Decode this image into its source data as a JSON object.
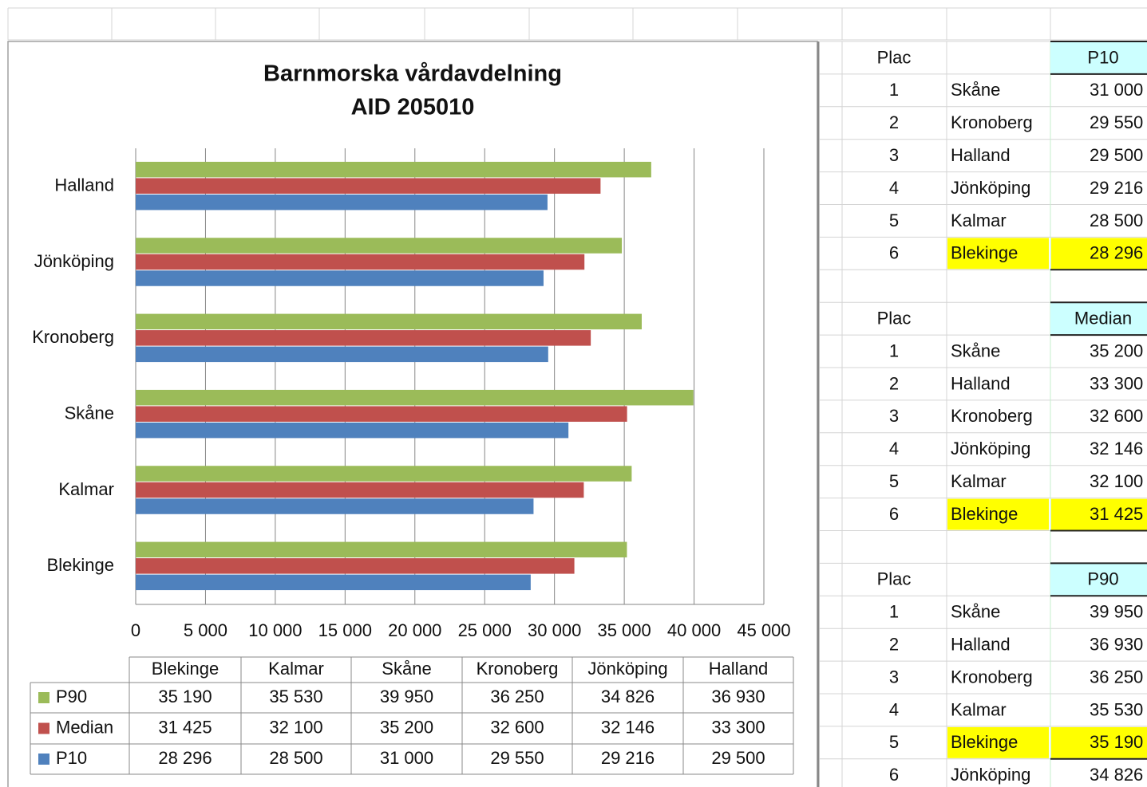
{
  "chart_data": {
    "type": "bar",
    "orientation": "horizontal",
    "title": "Barnmorska vårdavdelning",
    "subtitle": "AID 205010",
    "categories": [
      "Blekinge",
      "Kalmar",
      "Skåne",
      "Kronoberg",
      "Jönköping",
      "Halland"
    ],
    "series": [
      {
        "name": "P90",
        "color": "#9bbb59",
        "values": [
          35190,
          35530,
          39950,
          36250,
          34826,
          36930
        ],
        "value_labels": [
          "35 190",
          "35 530",
          "39 950",
          "36 250",
          "34 826",
          "36 930"
        ]
      },
      {
        "name": "Median",
        "color": "#c0504d",
        "values": [
          31425,
          32100,
          35200,
          32600,
          32146,
          33300
        ],
        "value_labels": [
          "31 425",
          "32 100",
          "35 200",
          "32 600",
          "32 146",
          "33 300"
        ]
      },
      {
        "name": "P10",
        "color": "#4f81bd",
        "values": [
          28296,
          28500,
          31000,
          29550,
          29216,
          29500
        ],
        "value_labels": [
          "28 296",
          "28 500",
          "31 000",
          "29 550",
          "29 216",
          "29 500"
        ]
      }
    ],
    "xlim": [
      0,
      45000
    ],
    "xticks": [
      0,
      {
        "value": 5000,
        "label": "5 000"
      },
      {
        "value": 10000,
        "label": "10 000"
      },
      {
        "value": 15000,
        "label": "15 000"
      },
      {
        "value": 20000,
        "label": "20 000"
      },
      {
        "value": 25000,
        "label": "25 000"
      },
      {
        "value": 30000,
        "label": "30 000"
      },
      {
        "value": 35000,
        "label": "35 000"
      },
      {
        "value": 40000,
        "label": "40 000"
      },
      {
        "value": 45000,
        "label": "45 000"
      }
    ],
    "grid": true,
    "data_table": true
  },
  "rankings": [
    {
      "header": "Plac",
      "measure": "P10",
      "highlighted": 5,
      "rows": [
        {
          "rank": "1",
          "name": "Skåne",
          "value": "31 000"
        },
        {
          "rank": "2",
          "name": "Kronoberg",
          "value": "29 550"
        },
        {
          "rank": "3",
          "name": "Halland",
          "value": "29 500"
        },
        {
          "rank": "4",
          "name": "Jönköping",
          "value": "29 216"
        },
        {
          "rank": "5",
          "name": "Kalmar",
          "value": "28 500"
        },
        {
          "rank": "6",
          "name": "Blekinge",
          "value": "28 296"
        }
      ]
    },
    {
      "header": "Plac",
      "measure": "Median",
      "highlighted": 5,
      "rows": [
        {
          "rank": "1",
          "name": "Skåne",
          "value": "35 200"
        },
        {
          "rank": "2",
          "name": "Halland",
          "value": "33 300"
        },
        {
          "rank": "3",
          "name": "Kronoberg",
          "value": "32 600"
        },
        {
          "rank": "4",
          "name": "Jönköping",
          "value": "32 146"
        },
        {
          "rank": "5",
          "name": "Kalmar",
          "value": "32 100"
        },
        {
          "rank": "6",
          "name": "Blekinge",
          "value": "31 425"
        }
      ]
    },
    {
      "header": "Plac",
      "measure": "P90",
      "highlighted": 4,
      "rows": [
        {
          "rank": "1",
          "name": "Skåne",
          "value": "39 950"
        },
        {
          "rank": "2",
          "name": "Halland",
          "value": "36 930"
        },
        {
          "rank": "3",
          "name": "Kronoberg",
          "value": "36 250"
        },
        {
          "rank": "4",
          "name": "Kalmar",
          "value": "35 530"
        },
        {
          "rank": "5",
          "name": "Blekinge",
          "value": "35 190"
        },
        {
          "rank": "6",
          "name": "Jönköping",
          "value": "34 826"
        }
      ]
    }
  ]
}
